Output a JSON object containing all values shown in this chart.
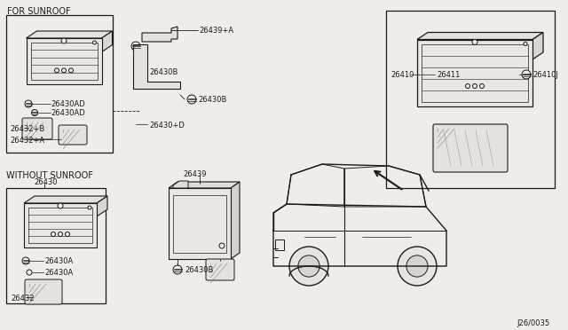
{
  "background_color": "#f0ede8",
  "line_color": "#1a1a1a",
  "diagram_number": "J26/0035",
  "labels": {
    "for_sunroof": "FOR SUNROOF",
    "without_sunroof": "WITHOUT SUNROOF",
    "p26430": "26430",
    "p26430AD_1": "26430AD",
    "p26430AD_2": "26430AD",
    "p26432B": "26432+B",
    "p26432A": "26432+A",
    "p26430B_1": "26430B",
    "p26430B_2": "26430B",
    "p26439A": "26439+A",
    "p26430D": "26430+D",
    "p26439": "26439",
    "p26430A_1": "26430A",
    "p26430A_2": "26430A",
    "p26432": "26432",
    "p26430B_3": "26430B",
    "p26410": "26410",
    "p26411": "26411",
    "p26410J": "26410J"
  }
}
